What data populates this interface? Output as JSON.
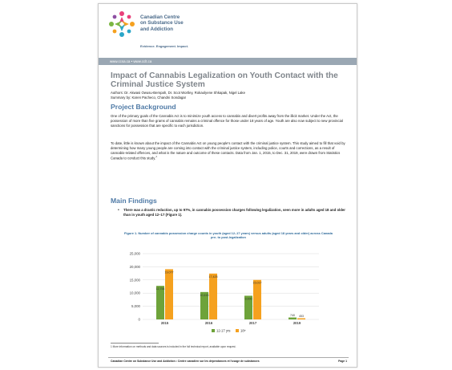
{
  "header": {
    "org_name_line1": "Canadian Centre",
    "org_name_line2": "on Substance Use",
    "org_name_line3": "and Addiction",
    "tagline": "Evidence. Engagement. Impact.",
    "urls": "www.ccsa.ca • www.cclt.ca"
  },
  "document": {
    "title": "Impact of Cannabis Legalization on Youth Contact with the Criminal Justice System",
    "authors": "Authors: Dr. Akwasi Owusu-Bempah, Dr. Scot Wortley, Rokaolyene Shkapak, Nigel Lake",
    "summary_by": "Summary by: Karen Pacheco, Chandni Sondagar",
    "section1_heading": "Project Background",
    "section1_para1": "One of the primary goals of the Cannabis Act is to minimize youth access to cannabis and divert profits away from the illicit market. Under the Act, the possession of more than five grams of cannabis remains a criminal offence for those under 18 years of age. Youth are also now subject to new provincial sanctions for possession that are specific to each jurisdiction.",
    "section1_para2": "To date, little is known about the impact of the Cannabis Act on young people's contact with the criminal justice system. This study aimed to fill that void by determining how many young people are coming into contact with the criminal justice system, including police, courts and corrections, as a result of cannabis-related offences, and what is the nature and outcome of these contacts. Data from Jan. 1, 2015, to Dec. 31, 2019, were drawn from Statistics Canada to conduct this study.",
    "section1_para2_sup": "1",
    "section2_heading": "Main Findings",
    "bullet_symbol": "•",
    "bullet1": "There was a drastic reduction, up to 97%, in cannabis possession charges following legalization, seen more in adults aged 18 and older than in youth aged 12–17 (Figure 1).",
    "figure_caption": "Figure 1. Number of cannabis possession charge counts in youth (aged 12–17 years) versus adults (aged 18 years and older) across Canada pre- to post-legalization",
    "footnote": "1 More information on methods and data sources is included in the full technical report, available upon request.",
    "footer": "Canadian Centre on Substance Use and Addiction • Centre canadien sur les dépendances et l'usage de substances",
    "page_label": "Page 1"
  },
  "colors": {
    "youth": "#6ea33a",
    "adult": "#f5a11f",
    "heading": "#4f7aa6",
    "title": "#7f858b"
  },
  "chart_data": {
    "type": "bar",
    "categories": [
      "2015",
      "2016",
      "2017",
      "2019"
    ],
    "series": [
      {
        "name": "12-17 yrs",
        "values": [
          12754,
          10415,
          9000,
          740
        ]
      },
      {
        "name": "18+",
        "values": [
          19077,
          17425,
          15017,
          453
        ]
      }
    ],
    "data_labels": [
      [
        "12,754",
        "10,415",
        "9,000",
        "740"
      ],
      [
        "19,077",
        "17,425",
        "15,017",
        "453"
      ]
    ],
    "yticks": [
      "0",
      "5,000",
      "10,000",
      "15,000",
      "20,000",
      "25,000"
    ],
    "ylim": [
      0,
      25000
    ],
    "legend": "bottom",
    "grid": true
  }
}
